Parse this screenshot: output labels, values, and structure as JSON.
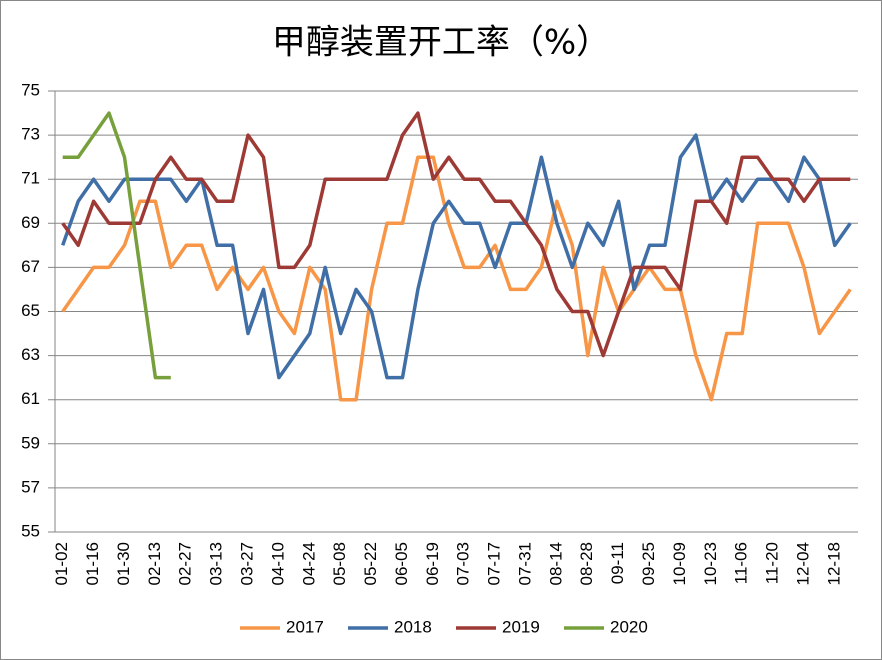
{
  "chart_data": {
    "type": "line",
    "title": "甲醇装置开工率（%）",
    "categories": [
      "01-02",
      null,
      "01-16",
      null,
      "01-30",
      null,
      "02-13",
      null,
      "02-27",
      null,
      "03-13",
      null,
      "03-27",
      null,
      "04-10",
      null,
      "04-24",
      null,
      "05-08",
      null,
      "05-22",
      null,
      "06-05",
      null,
      "06-19",
      null,
      "07-03",
      null,
      "07-17",
      null,
      "07-31",
      null,
      "08-14",
      null,
      "08-28",
      null,
      "09-11",
      null,
      "09-25",
      null,
      "10-09",
      null,
      "10-23",
      null,
      "11-06",
      null,
      "11-20",
      null,
      "12-04",
      null,
      "12-18",
      null
    ],
    "series": [
      {
        "name": "2017",
        "color": "#f79646",
        "values": [
          65,
          66,
          67,
          67,
          68,
          70,
          70,
          67,
          68,
          68,
          66,
          67,
          66,
          67,
          65,
          64,
          67,
          66,
          61,
          61,
          66,
          69,
          69,
          72,
          72,
          69,
          67,
          67,
          68,
          66,
          66,
          67,
          70,
          68,
          63,
          67,
          65,
          66,
          67,
          66,
          66,
          63,
          61,
          64,
          64,
          69,
          69,
          69,
          67,
          64,
          65,
          66
        ]
      },
      {
        "name": "2018",
        "color": "#3f6fa6",
        "values": [
          68,
          70,
          71,
          70,
          71,
          71,
          71,
          71,
          70,
          71,
          68,
          68,
          64,
          66,
          62,
          63,
          64,
          67,
          64,
          66,
          65,
          62,
          62,
          66,
          69,
          70,
          69,
          69,
          67,
          69,
          69,
          72,
          69,
          67,
          69,
          68,
          70,
          66,
          68,
          68,
          72,
          73,
          70,
          71,
          70,
          71,
          71,
          70,
          72,
          71,
          68,
          69
        ]
      },
      {
        "name": "2019",
        "color": "#9e3a35",
        "values": [
          69,
          68,
          70,
          69,
          69,
          69,
          71,
          72,
          71,
          71,
          70,
          70,
          73,
          72,
          67,
          67,
          68,
          71,
          71,
          71,
          71,
          71,
          73,
          74,
          71,
          72,
          71,
          71,
          70,
          70,
          69,
          68,
          66,
          65,
          65,
          63,
          65,
          67,
          67,
          67,
          66,
          70,
          70,
          69,
          72,
          72,
          71,
          71,
          70,
          71,
          71,
          71
        ]
      },
      {
        "name": "2020",
        "color": "#77a03c",
        "values": [
          72,
          72,
          73,
          74,
          72,
          67,
          62,
          62,
          null,
          null,
          null,
          null,
          null,
          null,
          null,
          null,
          null,
          null,
          null,
          null,
          null,
          null,
          null,
          null,
          null,
          null,
          null,
          null,
          null,
          null,
          null,
          null,
          null,
          null,
          null,
          null,
          null,
          null,
          null,
          null,
          null,
          null,
          null,
          null,
          null,
          null,
          null,
          null,
          null,
          null,
          null,
          null
        ]
      }
    ],
    "ylim": [
      55,
      75
    ],
    "yticks": [
      55,
      57,
      59,
      61,
      63,
      65,
      67,
      69,
      71,
      73,
      75
    ],
    "grid": true,
    "legend": "bottom"
  }
}
